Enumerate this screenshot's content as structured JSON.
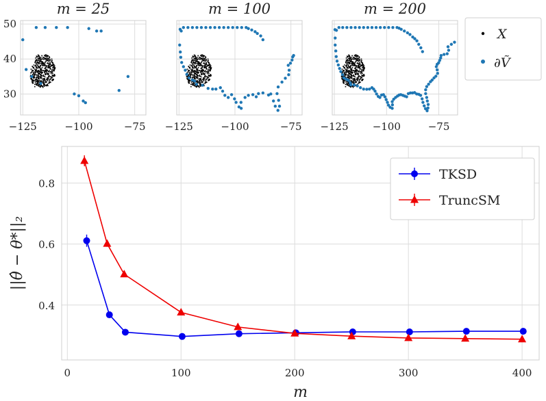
{
  "chart_data": [
    {
      "type": "scatter",
      "title": "m = 25",
      "xlim": [
        -126,
        -70
      ],
      "ylim": [
        24,
        51
      ],
      "xticks": [
        -125,
        -100,
        -75
      ],
      "yticks": [
        30,
        40,
        50
      ],
      "xtick_labels": [
        "−125",
        "−100",
        "−75"
      ],
      "ytick_labels": [
        "30",
        "40",
        "50"
      ],
      "boundary_points": [
        [
          -125,
          45.5
        ],
        [
          -123.5,
          37
        ],
        [
          -119,
          49
        ],
        [
          -115,
          49
        ],
        [
          -110,
          49
        ],
        [
          -105,
          49
        ],
        [
          -95.5,
          48.7
        ],
        [
          -92,
          48
        ],
        [
          -90,
          48
        ],
        [
          -102,
          30
        ],
        [
          -100,
          29.5
        ],
        [
          -98,
          28
        ],
        [
          -97,
          27.5
        ],
        [
          -82,
          31
        ],
        [
          -78,
          35
        ],
        [
          -117,
          33
        ],
        [
          -121,
          35
        ]
      ]
    },
    {
      "type": "scatter",
      "title": "m = 100",
      "xlim": [
        -126,
        -70
      ],
      "ylim": [
        24,
        51
      ],
      "xticks": [
        -125,
        -100,
        -75
      ],
      "yticks": [
        30,
        40,
        50
      ],
      "xtick_labels": [
        "−125",
        "−100",
        "−75"
      ],
      "ytick_labels": [
        "30",
        "40",
        "50"
      ],
      "boundary_points": [
        [
          -124.5,
          48.5
        ],
        [
          -124,
          48
        ],
        [
          -123,
          49
        ],
        [
          -121,
          49
        ],
        [
          -119,
          49
        ],
        [
          -117,
          49
        ],
        [
          -115,
          49
        ],
        [
          -113,
          49
        ],
        [
          -111,
          49
        ],
        [
          -109,
          49
        ],
        [
          -107,
          49
        ],
        [
          -105,
          49
        ],
        [
          -103,
          49
        ],
        [
          -101,
          49
        ],
        [
          -99,
          49
        ],
        [
          -97,
          49
        ],
        [
          -95,
          49
        ],
        [
          -94,
          48.7
        ],
        [
          -92.5,
          48.3
        ],
        [
          -91,
          47.8
        ],
        [
          -90,
          47.3
        ],
        [
          -88.5,
          46.6
        ],
        [
          -87.5,
          45.5
        ],
        [
          -124.7,
          44
        ],
        [
          -124.4,
          42
        ],
        [
          -124.2,
          40.5
        ],
        [
          -123.8,
          39
        ],
        [
          -123,
          37.8
        ],
        [
          -122.2,
          36.8
        ],
        [
          -121.5,
          35.6
        ],
        [
          -120.5,
          34.6
        ],
        [
          -119,
          34
        ],
        [
          -118,
          33.7
        ],
        [
          -117.2,
          32.8
        ],
        [
          -114.5,
          32.5
        ],
        [
          -112,
          31.6
        ],
        [
          -110,
          31.4
        ],
        [
          -108.5,
          31.4
        ],
        [
          -106.5,
          31.8
        ],
        [
          -105.5,
          30.8
        ],
        [
          -104.5,
          29.6
        ],
        [
          -103,
          29
        ],
        [
          -101.5,
          29.8
        ],
        [
          -100.2,
          28.6
        ],
        [
          -99.5,
          27.6
        ],
        [
          -98.2,
          26.3
        ],
        [
          -97.2,
          25.9
        ],
        [
          -97.3,
          27.6
        ],
        [
          -95.5,
          29
        ],
        [
          -94,
          29.6
        ],
        [
          -92,
          29.8
        ],
        [
          -90.5,
          29.2
        ],
        [
          -89.5,
          30.1
        ],
        [
          -87.5,
          30.3
        ],
        [
          -85,
          29.7
        ],
        [
          -84,
          30
        ],
        [
          -82.8,
          28
        ],
        [
          -82,
          26.5
        ],
        [
          -80.8,
          25.3
        ],
        [
          -80.1,
          26.5
        ],
        [
          -80.5,
          28.2
        ],
        [
          -81.2,
          30.1
        ],
        [
          -80.7,
          32
        ],
        [
          -79,
          33.4
        ],
        [
          -77.5,
          34.5
        ],
        [
          -76,
          35.5
        ],
        [
          -75.8,
          36.8
        ],
        [
          -76.2,
          38.2
        ],
        [
          -75.2,
          38.8
        ],
        [
          -74.5,
          39.7
        ],
        [
          -74.2,
          40.6
        ],
        [
          -73.8,
          41
        ]
      ]
    },
    {
      "type": "scatter",
      "title": "m = 200",
      "xlim": [
        -126,
        -66
      ],
      "ylim": [
        24,
        51
      ],
      "xticks": [
        -125,
        -100,
        -75
      ],
      "yticks": [
        30,
        40,
        50
      ],
      "xtick_labels": [
        "−125",
        "−100",
        "−75"
      ],
      "ytick_labels": [
        "30",
        "40",
        "50"
      ],
      "boundary_points": [
        [
          -124.7,
          48.4
        ],
        [
          -124,
          48.2
        ],
        [
          -122.8,
          49
        ],
        [
          -121,
          49
        ],
        [
          -119,
          49
        ],
        [
          -117,
          49
        ],
        [
          -115,
          49
        ],
        [
          -113,
          49
        ],
        [
          -111,
          49
        ],
        [
          -109,
          49
        ],
        [
          -107,
          49
        ],
        [
          -105,
          49
        ],
        [
          -103,
          49
        ],
        [
          -101,
          49
        ],
        [
          -99,
          49
        ],
        [
          -97,
          49
        ],
        [
          -95,
          49
        ],
        [
          -94,
          48.8
        ],
        [
          -93,
          48.5
        ],
        [
          -91.5,
          48
        ],
        [
          -90,
          47.5
        ],
        [
          -88.8,
          47
        ],
        [
          -87.5,
          46.3
        ],
        [
          -86.5,
          45.8
        ],
        [
          -85.5,
          45.2
        ],
        [
          -84.6,
          44.2
        ],
        [
          -83.6,
          43.2
        ],
        [
          -82.8,
          42.1
        ],
        [
          -124.6,
          46
        ],
        [
          -124.6,
          44
        ],
        [
          -124.3,
          42.3
        ],
        [
          -124.1,
          40.7
        ],
        [
          -123.7,
          39.4
        ],
        [
          -123.1,
          38.3
        ],
        [
          -122.5,
          37.3
        ],
        [
          -121.9,
          36.4
        ],
        [
          -121.1,
          35.5
        ],
        [
          -120.4,
          34.6
        ],
        [
          -119.3,
          34.2
        ],
        [
          -118.3,
          33.9
        ],
        [
          -117.4,
          33.2
        ],
        [
          -117.1,
          32.6
        ],
        [
          -115.5,
          32.6
        ],
        [
          -114,
          32.3
        ],
        [
          -112.5,
          31.8
        ],
        [
          -111,
          31.4
        ],
        [
          -109.5,
          31.35
        ],
        [
          -108.2,
          31.4
        ],
        [
          -107,
          31.8
        ],
        [
          -106.2,
          31.4
        ],
        [
          -105.5,
          30.8
        ],
        [
          -104.8,
          30
        ],
        [
          -104,
          29.3
        ],
        [
          -103.2,
          29
        ],
        [
          -102.4,
          29.7
        ],
        [
          -101.5,
          29.8
        ],
        [
          -100.8,
          29.2
        ],
        [
          -100.2,
          28.4
        ],
        [
          -99.6,
          27.6
        ],
        [
          -99.1,
          26.8
        ],
        [
          -98.3,
          26.2
        ],
        [
          -97.3,
          25.9
        ],
        [
          -97.2,
          26.9
        ],
        [
          -97.3,
          27.8
        ],
        [
          -96.6,
          28.5
        ],
        [
          -95.7,
          29
        ],
        [
          -94.8,
          29.4
        ],
        [
          -94,
          29.7
        ],
        [
          -93.2,
          29.8
        ],
        [
          -92.2,
          29.6
        ],
        [
          -91.3,
          29.4
        ],
        [
          -90.4,
          29.2
        ],
        [
          -89.6,
          30.1
        ],
        [
          -88.6,
          30.3
        ],
        [
          -87.6,
          30.3
        ],
        [
          -86.6,
          30.4
        ],
        [
          -85.6,
          30
        ],
        [
          -84.6,
          29.9
        ],
        [
          -83.7,
          29.6
        ],
        [
          -83,
          28.6
        ],
        [
          -82.6,
          27.6
        ],
        [
          -82,
          26.6
        ],
        [
          -81.4,
          25.8
        ],
        [
          -80.6,
          25.2
        ],
        [
          -80.2,
          26
        ],
        [
          -80.1,
          27
        ],
        [
          -80.5,
          28
        ],
        [
          -80.8,
          29
        ],
        [
          -81.3,
          30.1
        ],
        [
          -81.3,
          31.2
        ],
        [
          -80.8,
          32.1
        ],
        [
          -79.9,
          32.8
        ],
        [
          -79,
          33.5
        ],
        [
          -78.2,
          34
        ],
        [
          -77.3,
          34.6
        ],
        [
          -76.4,
          35.1
        ],
        [
          -75.6,
          35.9
        ],
        [
          -75.8,
          36.9
        ],
        [
          -76.2,
          37.8
        ],
        [
          -75.8,
          38.5
        ],
        [
          -75.1,
          38.9
        ],
        [
          -74.6,
          39.6
        ],
        [
          -74.1,
          40.3
        ],
        [
          -73.9,
          41
        ],
        [
          -72.5,
          41.3
        ],
        [
          -71,
          41.5
        ],
        [
          -70.3,
          42.5
        ],
        [
          -70.6,
          43.5
        ],
        [
          -69,
          44.2
        ],
        [
          -67.5,
          44.8
        ]
      ],
      "interior_center": [
        -116,
        36.5
      ]
    },
    {
      "type": "line",
      "xlabel": "m",
      "ylabel": "||θ̂ − θ*||₂",
      "xlim": [
        -5,
        415
      ],
      "ylim": [
        0.22,
        0.92
      ],
      "xticks": [
        0,
        100,
        200,
        300,
        400
      ],
      "yticks": [
        0.4,
        0.6,
        0.8
      ],
      "xtick_labels": [
        "0",
        "100",
        "200",
        "300",
        "400"
      ],
      "ytick_labels": [
        "0.4",
        "0.6",
        "0.8"
      ],
      "legend_position": "top-right",
      "series": [
        {
          "name": "TKSD",
          "color": "#0000ee",
          "marker": "circle",
          "x": [
            17,
            37,
            51,
            101,
            151,
            201,
            251,
            301,
            351,
            401
          ],
          "values": [
            0.611,
            0.368,
            0.311,
            0.297,
            0.306,
            0.309,
            0.312,
            0.312,
            0.314,
            0.314
          ],
          "errors": [
            0.02,
            0.008,
            0.006,
            0.004,
            0.004,
            0.004,
            0.004,
            0.004,
            0.004,
            0.004
          ]
        },
        {
          "name": "TruncSM",
          "color": "#ee0000",
          "marker": "triangle",
          "x": [
            15,
            35,
            50,
            100,
            150,
            200,
            250,
            300,
            350,
            400
          ],
          "values": [
            0.873,
            0.601,
            0.501,
            0.376,
            0.328,
            0.307,
            0.298,
            0.292,
            0.29,
            0.288
          ],
          "errors": [
            0.018,
            0.01,
            0.006,
            0.005,
            0.004,
            0.004,
            0.004,
            0.004,
            0.004,
            0.004
          ]
        }
      ]
    }
  ],
  "top_legend": {
    "items": [
      {
        "label": "X",
        "color": "#000000",
        "symbol": "dot"
      },
      {
        "label": "∂Ṽ",
        "color": "#1f77b4",
        "symbol": "dot"
      }
    ]
  },
  "colors": {
    "interior": "#000000",
    "boundary": "#1f77b4",
    "grid": "#dcdcdc",
    "frame": "#cfcfcf"
  }
}
